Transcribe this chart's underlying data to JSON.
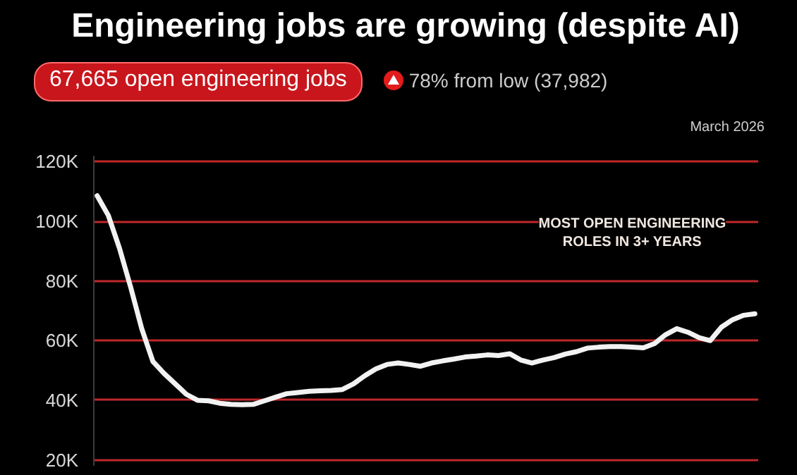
{
  "chart_data": {
    "type": "line",
    "title": "Engineering jobs are growing (despite AI)",
    "annotations": [
      "67,665 open engineering jobs",
      "78% from low (37,982)",
      "March 2026",
      "MOST OPEN ENGINEERING ROLES IN 3+ YEARS"
    ],
    "categories": [
      null,
      null,
      null,
      null,
      null,
      null,
      null,
      null,
      null,
      null,
      null,
      null,
      null,
      null,
      null,
      null,
      null,
      null,
      null,
      null,
      null,
      null,
      null,
      null,
      null,
      null,
      null,
      null,
      null,
      null,
      null,
      null,
      null,
      null,
      null,
      null,
      null,
      null,
      null,
      null,
      null,
      null,
      null,
      null,
      null,
      null,
      null,
      null,
      null,
      null,
      null,
      null,
      null,
      null,
      null,
      null,
      null,
      null,
      null,
      null
    ],
    "series": [
      {
        "color": "#f2f2f2",
        "values": [
          108600,
          102000,
          91000,
          78000,
          64000,
          53000,
          49000,
          45500,
          42000,
          40000,
          39800,
          39000,
          38600,
          38500,
          38600,
          39800,
          41000,
          42200,
          42600,
          43000,
          43200,
          43300,
          43600,
          45500,
          48200,
          50500,
          52000,
          52500,
          52000,
          51400,
          52500,
          53200,
          53800,
          54500,
          54800,
          55200,
          55000,
          55600,
          53500,
          52500,
          53500,
          54300,
          55500,
          56300,
          57500,
          57800,
          58000,
          58000,
          57800,
          57600,
          59000,
          62000,
          64000,
          62800,
          61000,
          60000,
          64500,
          67000,
          68500,
          69000
        ]
      }
    ],
    "ylim": [
      18000,
      122000
    ],
    "yticks": [
      {
        "value": 20000,
        "label": "20K"
      },
      {
        "value": 40000,
        "label": "40K"
      },
      {
        "value": 60000,
        "label": "60K"
      },
      {
        "value": 80000,
        "label": "80K"
      },
      {
        "value": 100000,
        "label": "100K"
      },
      {
        "value": 120000,
        "label": "120K"
      }
    ],
    "grid": "y",
    "tick_labels": "y",
    "line_style": "solid",
    "marker": "none"
  }
}
